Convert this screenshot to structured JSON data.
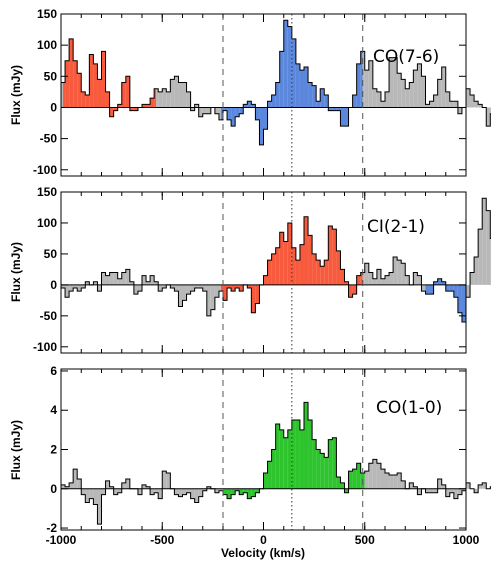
{
  "chart_data": {
    "type": "bar",
    "xlabel": "Velocity (km/s)",
    "xlim": [
      -1000,
      1000
    ],
    "x_ticks": [
      -1000,
      -500,
      0,
      500,
      1000
    ],
    "dashed_lines_x": [
      -200,
      490
    ],
    "dotted_line_x": 140,
    "colors": {
      "gray": "#b8b8b8",
      "red": "#f75a3c",
      "blue": "#5b88dc",
      "green": "#2ec42e"
    },
    "panels": [
      {
        "label": "CO(7-6)",
        "ylabel": "Flux (mJy)",
        "ylim": [
          -110,
          150
        ],
        "y_ticks": [
          -100,
          -50,
          0,
          50,
          100,
          150
        ],
        "x_start": -1000,
        "bin_width": 20,
        "values": [
          40,
          75,
          110,
          75,
          55,
          25,
          20,
          85,
          70,
          45,
          90,
          25,
          -15,
          -5,
          5,
          40,
          50,
          -5,
          -5,
          0,
          5,
          5,
          15,
          30,
          25,
          30,
          25,
          45,
          50,
          40,
          40,
          25,
          -5,
          5,
          -15,
          -10,
          -10,
          0,
          -10,
          -20,
          -5,
          -20,
          -30,
          -15,
          -10,
          5,
          10,
          5,
          -20,
          -60,
          -35,
          10,
          20,
          40,
          90,
          140,
          130,
          110,
          70,
          60,
          65,
          40,
          35,
          10,
          30,
          20,
          -5,
          -5,
          -5,
          -30,
          -30,
          0,
          20,
          70,
          90,
          60,
          75,
          30,
          25,
          10,
          25,
          80,
          80,
          55,
          45,
          30,
          40,
          60,
          70,
          50,
          5,
          10,
          20,
          45,
          65,
          25,
          10,
          10,
          -10,
          0,
          30,
          20,
          10,
          5,
          0,
          -30,
          -10,
          45,
          40,
          30,
          20,
          10,
          -20,
          -30
        ],
        "segments": [
          {
            "color": "gray",
            "from": -1000,
            "to": -990
          },
          {
            "color": "red",
            "from": -990,
            "to": -530
          },
          {
            "color": "gray",
            "from": -530,
            "to": -210
          },
          {
            "color": "blue",
            "from": -210,
            "to": 490
          },
          {
            "color": "gray",
            "from": 490,
            "to": 1000
          }
        ]
      },
      {
        "label": "CI(2-1)",
        "ylabel": "Flux (mJy)",
        "ylim": [
          -110,
          150
        ],
        "y_ticks": [
          -100,
          -50,
          0,
          50,
          100,
          150
        ],
        "x_start": -1000,
        "bin_width": 20,
        "values": [
          -5,
          -20,
          -10,
          -5,
          -10,
          -5,
          5,
          0,
          5,
          -10,
          20,
          15,
          20,
          20,
          10,
          20,
          25,
          5,
          -15,
          -10,
          15,
          5,
          15,
          5,
          -10,
          -5,
          0,
          -5,
          -10,
          -35,
          -25,
          -15,
          -10,
          -5,
          -5,
          -10,
          -50,
          -40,
          -20,
          -10,
          -25,
          -5,
          -10,
          -5,
          -10,
          0,
          -5,
          -45,
          -30,
          0,
          15,
          40,
          50,
          60,
          85,
          70,
          100,
          60,
          40,
          65,
          110,
          80,
          50,
          40,
          30,
          40,
          95,
          90,
          55,
          25,
          5,
          -20,
          -15,
          15,
          20,
          35,
          20,
          10,
          25,
          10,
          15,
          20,
          45,
          40,
          35,
          15,
          0,
          20,
          15,
          -10,
          -15,
          -15,
          5,
          10,
          5,
          -10,
          -10,
          -20,
          -45,
          -60,
          -20,
          20,
          45,
          90,
          140,
          120,
          75,
          30,
          10,
          0,
          -15
        ],
        "segments": [
          {
            "color": "gray",
            "from": -1000,
            "to": -210
          },
          {
            "color": "red",
            "from": -210,
            "to": 490
          },
          {
            "color": "gray",
            "from": 490,
            "to": 800
          },
          {
            "color": "blue",
            "from": 800,
            "to": 1000
          }
        ]
      },
      {
        "label": "CO(1-0)",
        "ylabel": "Flux (mJy)",
        "ylim": [
          -2.1,
          6.1
        ],
        "y_ticks": [
          -2,
          0,
          2,
          4,
          6
        ],
        "x_start": -1000,
        "bin_width": 20,
        "values": [
          0.2,
          0.1,
          0.3,
          1.0,
          0.5,
          -0.3,
          -0.7,
          -0.5,
          -0.8,
          -1.8,
          -0.3,
          0.4,
          0.1,
          -0.3,
          -0.2,
          0.3,
          0.5,
          0.0,
          0.0,
          -0.3,
          0.2,
          0.1,
          -0.3,
          -0.2,
          -0.5,
          0.9,
          0.8,
          0.0,
          -0.3,
          -0.4,
          -0.3,
          -0.2,
          -0.5,
          -0.7,
          -0.4,
          -0.1,
          0.1,
          0.0,
          -0.2,
          -0.1,
          -0.3,
          -0.5,
          -0.3,
          -0.1,
          -0.3,
          -0.2,
          -0.5,
          -0.4,
          -0.2,
          0.0,
          0.8,
          1.4,
          2.0,
          3.3,
          3.0,
          2.6,
          3.0,
          3.5,
          3.5,
          3.0,
          4.4,
          3.5,
          2.5,
          2.0,
          1.8,
          1.6,
          2.5,
          2.6,
          0.6,
          0.3,
          -0.2,
          0.9,
          1.0,
          1.3,
          0.8,
          0.9,
          1.3,
          1.5,
          1.3,
          1.0,
          0.8,
          0.7,
          0.7,
          0.8,
          0.4,
          0.0,
          0.3,
          0.1,
          -0.3,
          0.0,
          -0.2,
          -0.2,
          -0.2,
          0.5,
          0.2,
          -0.4,
          -0.2,
          -0.5,
          -0.3,
          -0.1,
          0.3,
          0.0,
          -0.2,
          0.2,
          0.3,
          0.0,
          0.1,
          -0.1,
          -0.2,
          0.6,
          1.5,
          0.5,
          -0.5
        ],
        "segments": [
          {
            "color": "gray",
            "from": -1000,
            "to": -200
          },
          {
            "color": "green",
            "from": -200,
            "to": 500
          },
          {
            "color": "gray",
            "from": 500,
            "to": 1000
          }
        ]
      }
    ]
  }
}
